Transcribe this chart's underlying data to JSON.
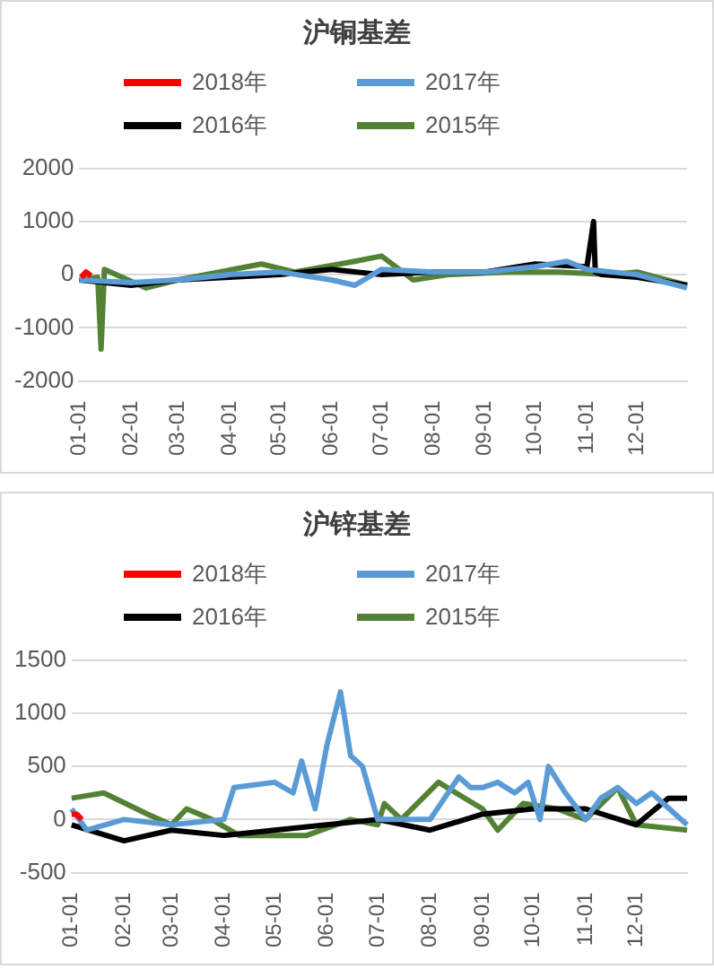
{
  "chart_data": [
    {
      "type": "line",
      "title": "沪铜基差",
      "legend": "top",
      "grid": "y",
      "xlim": [
        "--01-01",
        "--12-31"
      ],
      "xticks": [
        {
          "value": "--01-01",
          "label": "01-01"
        },
        {
          "value": "--02-01",
          "label": "02-01"
        },
        {
          "value": "--03-01",
          "label": "03-01"
        },
        {
          "value": "--04-01",
          "label": "04-01"
        },
        {
          "value": "--05-01",
          "label": "05-01"
        },
        {
          "value": "--06-01",
          "label": "06-01"
        },
        {
          "value": "--07-01",
          "label": "07-01"
        },
        {
          "value": "--08-01",
          "label": "08-01"
        },
        {
          "value": "--09-01",
          "label": "09-01"
        },
        {
          "value": "--10-01",
          "label": "10-01"
        },
        {
          "value": "--11-01",
          "label": "11-01"
        },
        {
          "value": "--12-01",
          "label": "12-01"
        }
      ],
      "ylim": [
        -2000,
        2000
      ],
      "yticks": [
        -2000,
        -1000,
        0,
        1000,
        2000
      ],
      "series": [
        {
          "name": "2018年",
          "color": "#ff0000",
          "x": [
            "--01-02",
            "--01-05",
            "--01-08"
          ],
          "values": [
            -50,
            50,
            -20
          ]
        },
        {
          "name": "2017年",
          "color": "#5b9bd5",
          "x": [
            "--01-01",
            "--02-01",
            "--03-01",
            "--04-01",
            "--05-01",
            "--06-01",
            "--06-15",
            "--07-01",
            "--08-01",
            "--09-01",
            "--10-01",
            "--10-20",
            "--11-01",
            "--12-01",
            "--12-31"
          ],
          "values": [
            -100,
            -150,
            -100,
            0,
            50,
            -100,
            -200,
            100,
            50,
            50,
            150,
            250,
            100,
            0,
            -250
          ]
        },
        {
          "name": "2016年",
          "color": "#000000",
          "x": [
            "--01-01",
            "--02-01",
            "--03-01",
            "--04-01",
            "--05-01",
            "--06-01",
            "--07-01",
            "--08-01",
            "--09-01",
            "--10-01",
            "--11-01",
            "--11-05",
            "--11-06",
            "--11-10",
            "--12-01",
            "--12-31"
          ],
          "values": [
            -100,
            -200,
            -100,
            -50,
            0,
            100,
            0,
            50,
            50,
            200,
            150,
            1000,
            50,
            0,
            -50,
            -200
          ]
        },
        {
          "name": "2015年",
          "color": "#548235",
          "x": [
            "--01-01",
            "--01-12",
            "--01-14",
            "--01-16",
            "--02-10",
            "--03-01",
            "--04-20",
            "--05-10",
            "--06-15",
            "--07-01",
            "--07-20",
            "--08-10",
            "--09-15",
            "--10-15",
            "--11-15",
            "--12-01",
            "--12-31"
          ],
          "values": [
            -100,
            -50,
            -1400,
            100,
            -250,
            -100,
            200,
            50,
            250,
            350,
            -100,
            0,
            50,
            50,
            0,
            50,
            -200
          ]
        }
      ]
    },
    {
      "type": "line",
      "title": "沪锌基差",
      "legend": "top",
      "grid": "y",
      "xlim": [
        "--01-01",
        "--12-31"
      ],
      "xticks": [
        {
          "value": "--01-01",
          "label": "01-01"
        },
        {
          "value": "--02-01",
          "label": "02-01"
        },
        {
          "value": "--03-01",
          "label": "03-01"
        },
        {
          "value": "--04-01",
          "label": "04-01"
        },
        {
          "value": "--05-01",
          "label": "05-01"
        },
        {
          "value": "--06-01",
          "label": "06-01"
        },
        {
          "value": "--07-01",
          "label": "07-01"
        },
        {
          "value": "--08-01",
          "label": "08-01"
        },
        {
          "value": "--09-01",
          "label": "09-01"
        },
        {
          "value": "--10-01",
          "label": "10-01"
        },
        {
          "value": "--11-01",
          "label": "11-01"
        },
        {
          "value": "--12-01",
          "label": "12-01"
        }
      ],
      "ylim": [
        -500,
        1500
      ],
      "yticks": [
        -500,
        0,
        500,
        1000,
        1500
      ],
      "series": [
        {
          "name": "2018年",
          "color": "#ff0000",
          "x": [
            "--01-01",
            "--01-04",
            "--01-07"
          ],
          "values": [
            50,
            50,
            0
          ]
        },
        {
          "name": "2017年",
          "color": "#5b9bd5",
          "x": [
            "--01-01",
            "--01-10",
            "--02-01",
            "--03-01",
            "--04-01",
            "--04-07",
            "--05-01",
            "--05-12",
            "--05-17",
            "--05-25",
            "--06-01",
            "--06-09",
            "--06-15",
            "--06-22",
            "--07-01",
            "--08-01",
            "--08-18",
            "--08-25",
            "--09-01",
            "--09-10",
            "--09-20",
            "--09-28",
            "--10-05",
            "--10-10",
            "--10-20",
            "--11-01",
            "--11-10",
            "--11-20",
            "--12-01",
            "--12-10",
            "--12-31"
          ],
          "values": [
            100,
            -100,
            0,
            -50,
            0,
            300,
            350,
            250,
            550,
            100,
            700,
            1200,
            600,
            500,
            0,
            0,
            400,
            300,
            300,
            350,
            250,
            350,
            0,
            500,
            250,
            0,
            200,
            300,
            150,
            250,
            -50
          ]
        },
        {
          "name": "2016年",
          "color": "#000000",
          "x": [
            "--01-01",
            "--02-01",
            "--03-01",
            "--04-01",
            "--05-01",
            "--06-01",
            "--07-01",
            "--08-01",
            "--09-01",
            "--10-01",
            "--11-01",
            "--12-01",
            "--12-20",
            "--12-31"
          ],
          "values": [
            -50,
            -200,
            -100,
            -150,
            -100,
            -50,
            0,
            -100,
            50,
            100,
            100,
            -50,
            200,
            200
          ]
        },
        {
          "name": "2015年",
          "color": "#548235",
          "x": [
            "--01-01",
            "--01-20",
            "--02-15",
            "--03-01",
            "--03-10",
            "--03-25",
            "--04-10",
            "--05-20",
            "--06-15",
            "--07-01",
            "--07-05",
            "--07-15",
            "--08-06",
            "--09-01",
            "--09-10",
            "--09-25",
            "--10-15",
            "--11-01",
            "--11-20",
            "--12-01",
            "--12-31"
          ],
          "values": [
            200,
            250,
            50,
            -50,
            100,
            0,
            -150,
            -150,
            0,
            -50,
            150,
            0,
            350,
            100,
            -100,
            150,
            100,
            0,
            300,
            -50,
            -100
          ]
        }
      ]
    }
  ]
}
